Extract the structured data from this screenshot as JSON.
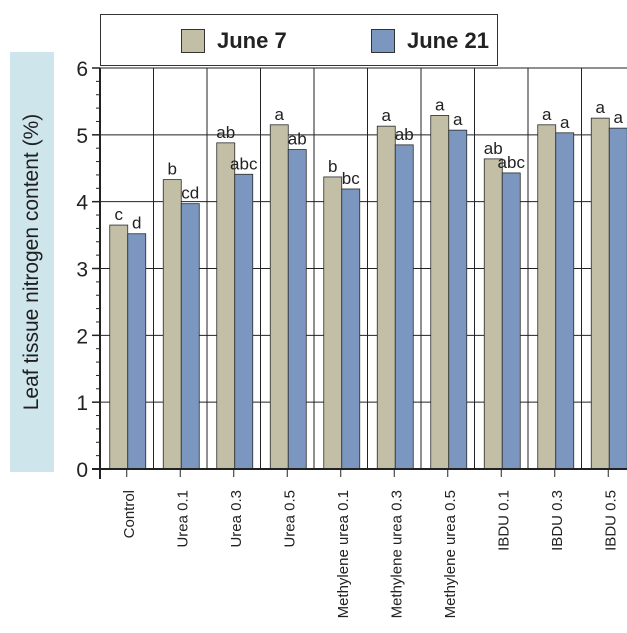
{
  "colors": {
    "june7": "#c2bfa6",
    "june21": "#7b97bf",
    "axis": "#222222",
    "grid": "#222222",
    "ylabel_bg": "#cfe5ec"
  },
  "chart_data": {
    "type": "bar",
    "ylabel": "Leaf tissue nitrogen content (%)",
    "xlabel": "",
    "ylim": [
      0,
      6
    ],
    "yticks": [
      "0",
      "1",
      "2",
      "3",
      "4",
      "5",
      "6"
    ],
    "grid": true,
    "legend": "top",
    "categories": [
      "Control",
      "Urea 0.1",
      "Urea 0.3",
      "Urea 0.5",
      "Methylene urea 0.1",
      "Methylene urea 0.3",
      "Methylene urea 0.5",
      "IBDU 0.1",
      "IBDU 0.3",
      "IBDU 0.5"
    ],
    "series": [
      {
        "name": "June 7",
        "values": [
          3.65,
          4.33,
          4.88,
          5.15,
          4.37,
          5.13,
          5.29,
          4.64,
          5.15,
          5.25
        ],
        "letters": [
          "c",
          "b",
          "ab",
          "a",
          "b",
          "a",
          "a",
          "ab",
          "a",
          "a"
        ]
      },
      {
        "name": "June 21",
        "values": [
          3.52,
          3.97,
          4.41,
          4.78,
          4.19,
          4.85,
          5.07,
          4.43,
          5.03,
          5.1
        ],
        "letters": [
          "d",
          "cd",
          "abc",
          "ab",
          "bc",
          "ab",
          "a",
          "abc",
          "a",
          "a"
        ]
      }
    ]
  }
}
